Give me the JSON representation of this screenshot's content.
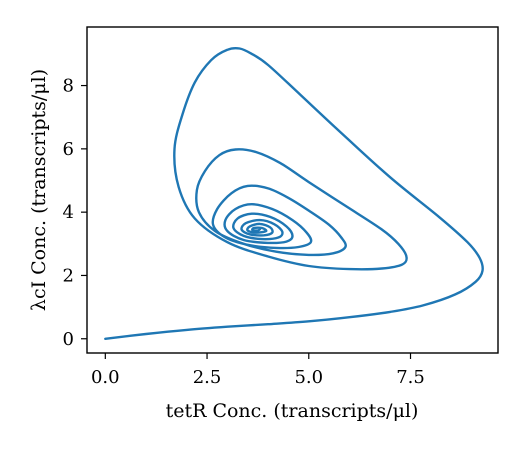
{
  "chart_data": {
    "type": "line",
    "xlabel": "tetR Conc. (transcripts/μl)",
    "ylabel": "λcI Conc. (transcripts/μl)",
    "xlim": [
      -0.45,
      9.65
    ],
    "ylim": [
      -0.45,
      9.85
    ],
    "xticks": [
      0,
      2.5,
      5,
      7.5
    ],
    "xtick_labels": [
      "0.0",
      "2.5",
      "5.0",
      "7.5"
    ],
    "yticks": [
      0,
      2,
      4,
      6,
      8
    ],
    "ytick_labels": [
      "0",
      "2",
      "4",
      "6",
      "8"
    ],
    "grid": false,
    "colors": {
      "line": "#1f77b4"
    },
    "series": [
      {
        "points": [
          [
            0.0,
            0.0
          ],
          [
            1.0,
            0.15
          ],
          [
            2.0,
            0.28
          ],
          [
            3.0,
            0.38
          ],
          [
            4.0,
            0.46
          ],
          [
            5.0,
            0.55
          ],
          [
            6.0,
            0.68
          ],
          [
            7.0,
            0.85
          ],
          [
            7.8,
            1.05
          ],
          [
            8.6,
            1.4
          ],
          [
            9.1,
            1.8
          ],
          [
            9.27,
            2.15
          ],
          [
            9.2,
            2.55
          ],
          [
            8.9,
            3.05
          ],
          [
            8.2,
            3.85
          ],
          [
            7.0,
            5.1
          ],
          [
            5.8,
            6.5
          ],
          [
            4.8,
            7.7
          ],
          [
            4.0,
            8.65
          ],
          [
            3.6,
            9.0
          ],
          [
            3.3,
            9.17
          ],
          [
            3.0,
            9.13
          ],
          [
            2.6,
            8.8
          ],
          [
            2.2,
            8.1
          ],
          [
            1.9,
            7.1
          ],
          [
            1.7,
            6.0
          ],
          [
            1.8,
            4.8
          ],
          [
            2.2,
            3.8
          ],
          [
            3.0,
            3.05
          ],
          [
            4.0,
            2.6
          ],
          [
            5.0,
            2.3
          ],
          [
            6.0,
            2.2
          ],
          [
            6.8,
            2.22
          ],
          [
            7.3,
            2.35
          ],
          [
            7.4,
            2.6
          ],
          [
            7.2,
            3.0
          ],
          [
            6.8,
            3.45
          ],
          [
            5.9,
            4.2
          ],
          [
            5.0,
            4.95
          ],
          [
            4.3,
            5.55
          ],
          [
            3.7,
            5.9
          ],
          [
            3.2,
            5.98
          ],
          [
            2.8,
            5.8
          ],
          [
            2.45,
            5.3
          ],
          [
            2.25,
            4.7
          ],
          [
            2.3,
            4.0
          ],
          [
            2.7,
            3.4
          ],
          [
            3.4,
            3.0
          ],
          [
            4.2,
            2.75
          ],
          [
            5.0,
            2.65
          ],
          [
            5.6,
            2.7
          ],
          [
            5.9,
            2.9
          ],
          [
            5.8,
            3.2
          ],
          [
            5.5,
            3.6
          ],
          [
            5.0,
            4.05
          ],
          [
            4.5,
            4.45
          ],
          [
            4.0,
            4.75
          ],
          [
            3.5,
            4.83
          ],
          [
            3.1,
            4.6
          ],
          [
            2.75,
            4.1
          ],
          [
            2.65,
            3.6
          ],
          [
            2.95,
            3.2
          ],
          [
            3.5,
            2.97
          ],
          [
            4.2,
            2.87
          ],
          [
            4.75,
            2.9
          ],
          [
            5.05,
            3.05
          ],
          [
            4.95,
            3.35
          ],
          [
            4.6,
            3.75
          ],
          [
            4.1,
            4.1
          ],
          [
            3.6,
            4.25
          ],
          [
            3.2,
            4.1
          ],
          [
            2.95,
            3.75
          ],
          [
            3.0,
            3.4
          ],
          [
            3.4,
            3.12
          ],
          [
            4.0,
            3.03
          ],
          [
            4.45,
            3.07
          ],
          [
            4.6,
            3.25
          ],
          [
            4.45,
            3.55
          ],
          [
            4.05,
            3.85
          ],
          [
            3.6,
            3.95
          ],
          [
            3.25,
            3.8
          ],
          [
            3.15,
            3.5
          ],
          [
            3.4,
            3.25
          ],
          [
            3.85,
            3.15
          ],
          [
            4.25,
            3.2
          ],
          [
            4.35,
            3.38
          ],
          [
            4.15,
            3.62
          ],
          [
            3.8,
            3.75
          ],
          [
            3.45,
            3.65
          ],
          [
            3.35,
            3.45
          ],
          [
            3.55,
            3.3
          ],
          [
            3.9,
            3.27
          ],
          [
            4.1,
            3.35
          ],
          [
            4.05,
            3.52
          ],
          [
            3.8,
            3.63
          ],
          [
            3.55,
            3.55
          ],
          [
            3.5,
            3.42
          ],
          [
            3.7,
            3.35
          ],
          [
            3.95,
            3.4
          ],
          [
            3.85,
            3.5
          ],
          [
            3.65,
            3.5
          ],
          [
            3.62,
            3.43
          ],
          [
            3.75,
            3.42
          ],
          [
            3.8,
            3.46
          ]
        ]
      }
    ]
  }
}
